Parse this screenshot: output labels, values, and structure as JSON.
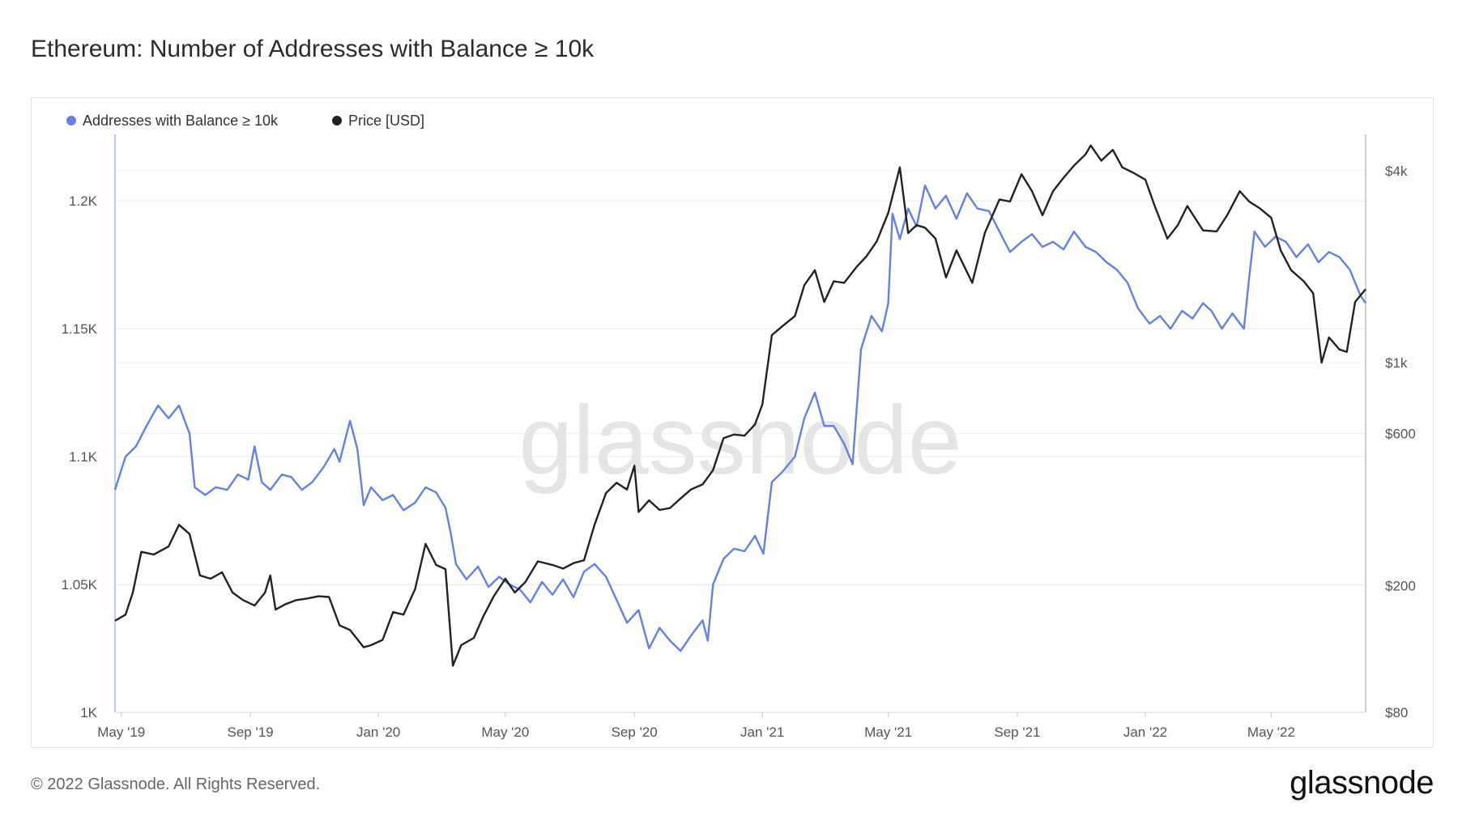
{
  "title": "Ethereum: Number of Addresses with Balance ≥ 10k",
  "footer": "© 2022 Glassnode. All Rights Reserved.",
  "brand": "glassnode",
  "watermark": "glassnode",
  "colors": {
    "addresses": "#6480e6",
    "price": "#222222",
    "grid": "#ececec",
    "axis": "#a9bbee"
  },
  "chart_data": {
    "type": "line",
    "title": "Ethereum: Number of Addresses with Balance ≥ 10k",
    "legend_position": "top-left",
    "grid": true,
    "x_ticks": [
      "May '19",
      "Sep '19",
      "Jan '20",
      "May '20",
      "Sep '20",
      "Jan '21",
      "May '21",
      "Sep '21",
      "Jan '22",
      "May '22"
    ],
    "x_range": [
      "2019-04-25",
      "2022-07-30"
    ],
    "y_left": {
      "ticks": [
        "1K",
        "1.05K",
        "1.1K",
        "1.15K",
        "1.2K"
      ],
      "ylim": [
        1000,
        1226
      ]
    },
    "y_right": {
      "scale": "log",
      "ticks": [
        "$80",
        "$200",
        "$600",
        "$1k",
        "$4k"
      ],
      "ylim": [
        80,
        5200
      ]
    },
    "series": [
      {
        "name": "Addresses with Balance ≥ 10k",
        "axis": "left",
        "points": [
          [
            "2019-04-25",
            1087
          ],
          [
            "2019-05-05",
            1100
          ],
          [
            "2019-05-15",
            1104
          ],
          [
            "2019-05-25",
            1112
          ],
          [
            "2019-06-05",
            1120
          ],
          [
            "2019-06-15",
            1115
          ],
          [
            "2019-06-25",
            1120
          ],
          [
            "2019-07-05",
            1109
          ],
          [
            "2019-07-10",
            1088
          ],
          [
            "2019-07-20",
            1085
          ],
          [
            "2019-07-30",
            1088
          ],
          [
            "2019-08-10",
            1087
          ],
          [
            "2019-08-20",
            1093
          ],
          [
            "2019-08-30",
            1091
          ],
          [
            "2019-09-05",
            1104
          ],
          [
            "2019-09-12",
            1090
          ],
          [
            "2019-09-20",
            1087
          ],
          [
            "2019-10-01",
            1093
          ],
          [
            "2019-10-10",
            1092
          ],
          [
            "2019-10-20",
            1087
          ],
          [
            "2019-10-30",
            1090
          ],
          [
            "2019-11-10",
            1096
          ],
          [
            "2019-11-20",
            1103
          ],
          [
            "2019-11-25",
            1098
          ],
          [
            "2019-12-05",
            1114
          ],
          [
            "2019-12-12",
            1103
          ],
          [
            "2019-12-18",
            1081
          ],
          [
            "2019-12-25",
            1088
          ],
          [
            "2020-01-05",
            1083
          ],
          [
            "2020-01-15",
            1085
          ],
          [
            "2020-01-25",
            1079
          ],
          [
            "2020-02-05",
            1082
          ],
          [
            "2020-02-15",
            1088
          ],
          [
            "2020-02-25",
            1086
          ],
          [
            "2020-03-05",
            1080
          ],
          [
            "2020-03-10",
            1070
          ],
          [
            "2020-03-15",
            1058
          ],
          [
            "2020-03-25",
            1052
          ],
          [
            "2020-04-05",
            1057
          ],
          [
            "2020-04-15",
            1049
          ],
          [
            "2020-04-25",
            1053
          ],
          [
            "2020-05-05",
            1050
          ],
          [
            "2020-05-15",
            1048
          ],
          [
            "2020-05-25",
            1043
          ],
          [
            "2020-06-05",
            1051
          ],
          [
            "2020-06-15",
            1046
          ],
          [
            "2020-06-25",
            1052
          ],
          [
            "2020-07-05",
            1045
          ],
          [
            "2020-07-15",
            1055
          ],
          [
            "2020-07-25",
            1058
          ],
          [
            "2020-08-05",
            1053
          ],
          [
            "2020-08-15",
            1044
          ],
          [
            "2020-08-25",
            1035
          ],
          [
            "2020-09-05",
            1040
          ],
          [
            "2020-09-15",
            1025
          ],
          [
            "2020-09-25",
            1033
          ],
          [
            "2020-10-05",
            1028
          ],
          [
            "2020-10-15",
            1024
          ],
          [
            "2020-10-25",
            1030
          ],
          [
            "2020-11-05",
            1036
          ],
          [
            "2020-11-10",
            1028
          ],
          [
            "2020-11-15",
            1050
          ],
          [
            "2020-11-25",
            1060
          ],
          [
            "2020-12-05",
            1064
          ],
          [
            "2020-12-15",
            1063
          ],
          [
            "2020-12-25",
            1069
          ],
          [
            "2021-01-02",
            1062
          ],
          [
            "2021-01-10",
            1090
          ],
          [
            "2021-01-20",
            1094
          ],
          [
            "2021-02-01",
            1100
          ],
          [
            "2021-02-10",
            1115
          ],
          [
            "2021-02-20",
            1125
          ],
          [
            "2021-03-01",
            1112
          ],
          [
            "2021-03-10",
            1112
          ],
          [
            "2021-03-20",
            1105
          ],
          [
            "2021-03-28",
            1097
          ],
          [
            "2021-04-05",
            1142
          ],
          [
            "2021-04-15",
            1155
          ],
          [
            "2021-04-25",
            1149
          ],
          [
            "2021-05-01",
            1160
          ],
          [
            "2021-05-05",
            1195
          ],
          [
            "2021-05-12",
            1185
          ],
          [
            "2021-05-20",
            1197
          ],
          [
            "2021-05-28",
            1190
          ],
          [
            "2021-06-05",
            1206
          ],
          [
            "2021-06-15",
            1197
          ],
          [
            "2021-06-25",
            1202
          ],
          [
            "2021-07-05",
            1193
          ],
          [
            "2021-07-15",
            1203
          ],
          [
            "2021-07-25",
            1197
          ],
          [
            "2021-08-05",
            1196
          ],
          [
            "2021-08-15",
            1188
          ],
          [
            "2021-08-25",
            1180
          ],
          [
            "2021-09-05",
            1184
          ],
          [
            "2021-09-15",
            1187
          ],
          [
            "2021-09-25",
            1182
          ],
          [
            "2021-10-05",
            1184
          ],
          [
            "2021-10-15",
            1181
          ],
          [
            "2021-10-25",
            1188
          ],
          [
            "2021-11-05",
            1182
          ],
          [
            "2021-11-15",
            1180
          ],
          [
            "2021-11-25",
            1176
          ],
          [
            "2021-12-05",
            1173
          ],
          [
            "2021-12-15",
            1168
          ],
          [
            "2021-12-25",
            1158
          ],
          [
            "2022-01-05",
            1152
          ],
          [
            "2022-01-15",
            1155
          ],
          [
            "2022-01-25",
            1150
          ],
          [
            "2022-02-05",
            1157
          ],
          [
            "2022-02-15",
            1154
          ],
          [
            "2022-02-25",
            1160
          ],
          [
            "2022-03-05",
            1157
          ],
          [
            "2022-03-15",
            1150
          ],
          [
            "2022-03-25",
            1156
          ],
          [
            "2022-04-05",
            1150
          ],
          [
            "2022-04-10",
            1170
          ],
          [
            "2022-04-15",
            1188
          ],
          [
            "2022-04-25",
            1182
          ],
          [
            "2022-05-05",
            1186
          ],
          [
            "2022-05-15",
            1184
          ],
          [
            "2022-05-25",
            1178
          ],
          [
            "2022-06-05",
            1183
          ],
          [
            "2022-06-15",
            1176
          ],
          [
            "2022-06-25",
            1180
          ],
          [
            "2022-07-05",
            1178
          ],
          [
            "2022-07-15",
            1173
          ],
          [
            "2022-07-25",
            1163
          ],
          [
            "2022-07-30",
            1160
          ]
        ]
      },
      {
        "name": "Price [USD]",
        "axis": "right",
        "points": [
          [
            "2019-04-25",
            155
          ],
          [
            "2019-05-05",
            162
          ],
          [
            "2019-05-12",
            190
          ],
          [
            "2019-05-20",
            255
          ],
          [
            "2019-06-01",
            250
          ],
          [
            "2019-06-15",
            265
          ],
          [
            "2019-06-25",
            310
          ],
          [
            "2019-07-05",
            290
          ],
          [
            "2019-07-15",
            215
          ],
          [
            "2019-07-25",
            210
          ],
          [
            "2019-08-05",
            220
          ],
          [
            "2019-08-15",
            190
          ],
          [
            "2019-08-25",
            180
          ],
          [
            "2019-09-05",
            173
          ],
          [
            "2019-09-15",
            190
          ],
          [
            "2019-09-20",
            215
          ],
          [
            "2019-09-25",
            168
          ],
          [
            "2019-10-05",
            175
          ],
          [
            "2019-10-15",
            180
          ],
          [
            "2019-10-25",
            182
          ],
          [
            "2019-11-05",
            185
          ],
          [
            "2019-11-15",
            184
          ],
          [
            "2019-11-25",
            150
          ],
          [
            "2019-12-05",
            145
          ],
          [
            "2019-12-18",
            128
          ],
          [
            "2019-12-25",
            130
          ],
          [
            "2020-01-05",
            135
          ],
          [
            "2020-01-15",
            165
          ],
          [
            "2020-01-25",
            162
          ],
          [
            "2020-02-05",
            195
          ],
          [
            "2020-02-15",
            270
          ],
          [
            "2020-02-25",
            232
          ],
          [
            "2020-03-05",
            225
          ],
          [
            "2020-03-12",
            112
          ],
          [
            "2020-03-20",
            130
          ],
          [
            "2020-04-01",
            137
          ],
          [
            "2020-04-10",
            160
          ],
          [
            "2020-04-20",
            185
          ],
          [
            "2020-05-01",
            210
          ],
          [
            "2020-05-10",
            190
          ],
          [
            "2020-05-20",
            205
          ],
          [
            "2020-06-01",
            238
          ],
          [
            "2020-06-15",
            232
          ],
          [
            "2020-06-25",
            226
          ],
          [
            "2020-07-05",
            235
          ],
          [
            "2020-07-15",
            240
          ],
          [
            "2020-07-25",
            310
          ],
          [
            "2020-08-05",
            390
          ],
          [
            "2020-08-15",
            420
          ],
          [
            "2020-08-25",
            400
          ],
          [
            "2020-09-01",
            475
          ],
          [
            "2020-09-05",
            340
          ],
          [
            "2020-09-15",
            370
          ],
          [
            "2020-09-25",
            345
          ],
          [
            "2020-10-05",
            350
          ],
          [
            "2020-10-15",
            375
          ],
          [
            "2020-10-25",
            400
          ],
          [
            "2020-11-05",
            415
          ],
          [
            "2020-11-15",
            460
          ],
          [
            "2020-11-25",
            580
          ],
          [
            "2020-12-05",
            595
          ],
          [
            "2020-12-15",
            590
          ],
          [
            "2020-12-25",
            640
          ],
          [
            "2021-01-01",
            740
          ],
          [
            "2021-01-10",
            1220
          ],
          [
            "2021-01-20",
            1300
          ],
          [
            "2021-02-01",
            1400
          ],
          [
            "2021-02-10",
            1750
          ],
          [
            "2021-02-20",
            1950
          ],
          [
            "2021-03-01",
            1550
          ],
          [
            "2021-03-10",
            1800
          ],
          [
            "2021-03-20",
            1780
          ],
          [
            "2021-04-01",
            2000
          ],
          [
            "2021-04-10",
            2150
          ],
          [
            "2021-04-20",
            2400
          ],
          [
            "2021-05-01",
            2950
          ],
          [
            "2021-05-12",
            4100
          ],
          [
            "2021-05-20",
            2550
          ],
          [
            "2021-05-28",
            2700
          ],
          [
            "2021-06-05",
            2650
          ],
          [
            "2021-06-15",
            2450
          ],
          [
            "2021-06-25",
            1850
          ],
          [
            "2021-07-05",
            2250
          ],
          [
            "2021-07-20",
            1780
          ],
          [
            "2021-08-01",
            2550
          ],
          [
            "2021-08-15",
            3250
          ],
          [
            "2021-08-25",
            3200
          ],
          [
            "2021-09-05",
            3900
          ],
          [
            "2021-09-15",
            3450
          ],
          [
            "2021-09-25",
            2900
          ],
          [
            "2021-10-05",
            3450
          ],
          [
            "2021-10-15",
            3800
          ],
          [
            "2021-10-25",
            4150
          ],
          [
            "2021-11-05",
            4500
          ],
          [
            "2021-11-10",
            4800
          ],
          [
            "2021-11-20",
            4300
          ],
          [
            "2021-12-01",
            4650
          ],
          [
            "2021-12-10",
            4100
          ],
          [
            "2021-12-20",
            3950
          ],
          [
            "2022-01-01",
            3750
          ],
          [
            "2022-01-10",
            3100
          ],
          [
            "2022-01-22",
            2450
          ],
          [
            "2022-02-01",
            2700
          ],
          [
            "2022-02-10",
            3100
          ],
          [
            "2022-02-25",
            2600
          ],
          [
            "2022-03-10",
            2580
          ],
          [
            "2022-03-20",
            2900
          ],
          [
            "2022-04-01",
            3450
          ],
          [
            "2022-04-10",
            3200
          ],
          [
            "2022-04-20",
            3050
          ],
          [
            "2022-05-01",
            2850
          ],
          [
            "2022-05-10",
            2250
          ],
          [
            "2022-05-20",
            1950
          ],
          [
            "2022-06-01",
            1800
          ],
          [
            "2022-06-10",
            1650
          ],
          [
            "2022-06-18",
            1000
          ],
          [
            "2022-06-25",
            1200
          ],
          [
            "2022-07-05",
            1100
          ],
          [
            "2022-07-12",
            1080
          ],
          [
            "2022-07-20",
            1550
          ],
          [
            "2022-07-30",
            1700
          ]
        ]
      }
    ]
  }
}
